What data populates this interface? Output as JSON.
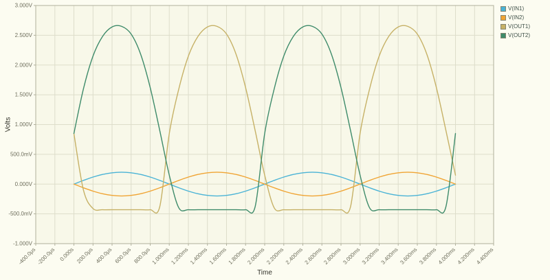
{
  "axis": {
    "y_label": "Volts",
    "x_label": "Time"
  },
  "chart_data": {
    "type": "line",
    "title": "",
    "xlabel": "Time",
    "ylabel": "Volts",
    "x_unit": "ms",
    "y_unit": "V",
    "xlim": [
      -0.4,
      4.4
    ],
    "ylim": [
      -1.0,
      3.0
    ],
    "grid": true,
    "legend_position": "top-right",
    "plot_bg": "#f8f8e9",
    "outer_bg": "#fcfcf1",
    "grid_color": "#ddddca",
    "border_color": "#b0b09c",
    "tick_text_color": "#6e6e5c",
    "axis_label_color": "#33332a",
    "x_ticks": {
      "values": [
        -0.4,
        -0.2,
        0,
        0.2,
        0.4,
        0.6,
        0.8,
        1,
        1.2,
        1.4,
        1.6,
        1.8,
        2,
        2.2,
        2.4,
        2.6,
        2.8,
        3,
        3.2,
        3.4,
        3.6,
        3.8,
        4,
        4.2,
        4.4
      ],
      "labels": [
        "-400.0μs",
        "-200.0μs",
        "0.000s",
        "200.0μs",
        "400.0μs",
        "600.0μs",
        "800.0μs",
        "1.000ms",
        "1.200ms",
        "1.400ms",
        "1.600ms",
        "1.800ms",
        "2.000ms",
        "2.200ms",
        "2.400ms",
        "2.600ms",
        "2.800ms",
        "3.000ms",
        "3.200ms",
        "3.400ms",
        "3.600ms",
        "3.800ms",
        "4.000ms",
        "4.200ms",
        "4.400ms"
      ]
    },
    "y_ticks": {
      "values": [
        3,
        2.5,
        2,
        1.5,
        1,
        0.5,
        0,
        -0.5,
        -1
      ],
      "labels": [
        "3.000V",
        "2.500V",
        "2.000V",
        "1.500V",
        "1.000V",
        "500.0mV",
        "0.000V",
        "-500.0mV",
        "-1.000V"
      ]
    },
    "x": [
      0,
      0.1,
      0.2,
      0.3,
      0.4,
      0.5,
      0.6,
      0.7,
      0.8,
      0.9,
      1,
      1.1,
      1.2,
      1.3,
      1.4,
      1.5,
      1.6,
      1.7,
      1.8,
      1.9,
      2,
      2.1,
      2.2,
      2.3,
      2.4,
      2.5,
      2.6,
      2.7,
      2.8,
      2.9,
      3,
      3.1,
      3.2,
      3.3,
      3.4,
      3.5,
      3.6,
      3.7,
      3.8,
      3.9,
      4
    ],
    "series": [
      {
        "name": "V(IN1)",
        "color": "#49b3d6",
        "values": [
          0,
          0.062,
          0.118,
          0.162,
          0.19,
          0.2,
          0.19,
          0.162,
          0.118,
          0.062,
          0,
          -0.062,
          -0.118,
          -0.162,
          -0.19,
          -0.2,
          -0.19,
          -0.162,
          -0.118,
          -0.062,
          0,
          0.062,
          0.118,
          0.162,
          0.19,
          0.2,
          0.19,
          0.162,
          0.118,
          0.062,
          0,
          -0.062,
          -0.118,
          -0.162,
          -0.19,
          -0.2,
          -0.19,
          -0.162,
          -0.118,
          -0.062,
          0
        ]
      },
      {
        "name": "V(IN2)",
        "color": "#f0a433",
        "values": [
          0,
          -0.062,
          -0.118,
          -0.162,
          -0.19,
          -0.2,
          -0.19,
          -0.162,
          -0.118,
          -0.062,
          0,
          0.062,
          0.118,
          0.162,
          0.19,
          0.2,
          0.19,
          0.162,
          0.118,
          0.062,
          0,
          -0.062,
          -0.118,
          -0.162,
          -0.19,
          -0.2,
          -0.19,
          -0.162,
          -0.118,
          -0.062,
          0,
          0.062,
          0.118,
          0.162,
          0.19,
          0.2,
          0.19,
          0.162,
          0.118,
          0.062,
          0
        ]
      },
      {
        "name": "V(OUT1)",
        "color": "#c6b166",
        "values": [
          0.85,
          -0.1,
          -0.41,
          -0.43,
          -0.43,
          -0.43,
          -0.43,
          -0.43,
          -0.43,
          -0.38,
          0.85,
          1.6,
          2.15,
          2.48,
          2.64,
          2.65,
          2.52,
          2.18,
          1.62,
          0.9,
          0.15,
          -0.4,
          -0.43,
          -0.43,
          -0.43,
          -0.43,
          -0.43,
          -0.43,
          -0.43,
          -0.38,
          0.85,
          1.6,
          2.15,
          2.48,
          2.64,
          2.65,
          2.52,
          2.18,
          1.62,
          0.9,
          0.15
        ]
      },
      {
        "name": "V(OUT2)",
        "color": "#3e8b6a",
        "values": [
          0.85,
          1.6,
          2.15,
          2.48,
          2.64,
          2.65,
          2.52,
          2.18,
          1.62,
          0.9,
          0.15,
          -0.4,
          -0.43,
          -0.43,
          -0.43,
          -0.43,
          -0.43,
          -0.43,
          -0.43,
          -0.38,
          0.85,
          1.6,
          2.15,
          2.48,
          2.64,
          2.65,
          2.52,
          2.18,
          1.62,
          0.9,
          0.15,
          -0.4,
          -0.43,
          -0.43,
          -0.43,
          -0.43,
          -0.43,
          -0.43,
          -0.43,
          -0.38,
          0.85
        ]
      }
    ]
  }
}
